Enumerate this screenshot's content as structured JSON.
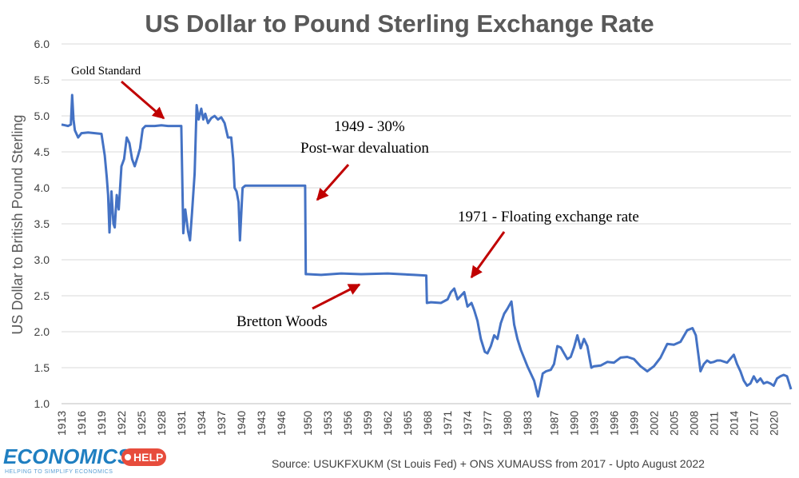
{
  "chart_data": {
    "type": "line",
    "title": "US Dollar to Pound Sterling Exchange Rate",
    "ylabel": "US Dollar to British Pound Sterling",
    "xlabel": "",
    "ylim": [
      1.0,
      6.0
    ],
    "xlim": [
      1913,
      2022.6
    ],
    "yticks": [
      "1.0",
      "1.5",
      "2.0",
      "2.5",
      "3.0",
      "3.5",
      "4.0",
      "4.5",
      "5.0",
      "5.5",
      "6.0"
    ],
    "xticks": [
      "1913",
      "1916",
      "1919",
      "1922",
      "1925",
      "1928",
      "1931",
      "1934",
      "1937",
      "1940",
      "1943",
      "1946",
      "1950",
      "1953",
      "1956",
      "1959",
      "1962",
      "1965",
      "1968",
      "1971",
      "1974",
      "1977",
      "1980",
      "1983",
      "1987",
      "1990",
      "1993",
      "1996",
      "1999",
      "2002",
      "2005",
      "2008",
      "2011",
      "2014",
      "2017",
      "2020"
    ],
    "grid": "horizontal",
    "series": [
      {
        "name": "",
        "color": "#4472c4",
        "x": [
          1913.0,
          1913.5,
          1914.0,
          1914.4,
          1914.6,
          1914.8,
          1915.0,
          1915.5,
          1916.0,
          1917.0,
          1918.0,
          1919.0,
          1919.5,
          1919.8,
          1920.0,
          1920.2,
          1920.5,
          1920.8,
          1921.0,
          1921.3,
          1921.6,
          1922.0,
          1922.4,
          1922.8,
          1923.2,
          1923.6,
          1924.0,
          1924.5,
          1924.8,
          1925.2,
          1925.6,
          1926.0,
          1927.0,
          1928.0,
          1929.0,
          1930.0,
          1931.0,
          1931.3,
          1931.6,
          1932.0,
          1932.3,
          1932.6,
          1933.0,
          1933.3,
          1933.6,
          1934.0,
          1934.3,
          1934.6,
          1935.0,
          1935.5,
          1936.0,
          1936.5,
          1937.0,
          1937.5,
          1938.0,
          1938.5,
          1938.8,
          1939.0,
          1939.3,
          1939.6,
          1939.8,
          1940.2,
          1940.6,
          1941.0,
          1945.0,
          1949.0,
          1949.6,
          1949.7,
          1950.0,
          1952.0,
          1955.0,
          1958.0,
          1962.0,
          1966.0,
          1967.8,
          1967.9,
          1968.5,
          1970.0,
          1971.0,
          1971.5,
          1972.0,
          1972.5,
          1973.0,
          1973.5,
          1974.0,
          1974.6,
          1975.0,
          1975.5,
          1976.0,
          1976.6,
          1977.0,
          1977.5,
          1978.0,
          1978.5,
          1979.0,
          1979.5,
          1980.0,
          1980.6,
          1981.0,
          1981.5,
          1982.0,
          1983.0,
          1984.0,
          1984.6,
          1985.0,
          1985.3,
          1985.8,
          1986.5,
          1987.0,
          1987.5,
          1988.0,
          1988.5,
          1989.0,
          1989.5,
          1990.0,
          1990.5,
          1991.0,
          1991.5,
          1992.0,
          1992.6,
          1993.0,
          1994.0,
          1995.0,
          1996.0,
          1997.0,
          1998.0,
          1999.0,
          2000.0,
          2001.0,
          2002.0,
          2003.0,
          2004.0,
          2005.0,
          2006.0,
          2007.0,
          2007.8,
          2008.3,
          2008.8,
          2009.0,
          2009.5,
          2010.0,
          2010.5,
          2011.0,
          2011.5,
          2012.0,
          2013.0,
          2014.0,
          2014.5,
          2015.0,
          2015.5,
          2016.0,
          2016.5,
          2017.0,
          2017.5,
          2018.0,
          2018.5,
          2019.0,
          2019.5,
          2020.0,
          2020.5,
          2021.0,
          2021.5,
          2022.0,
          2022.6
        ],
        "y": [
          4.88,
          4.87,
          4.86,
          4.88,
          5.29,
          4.95,
          4.8,
          4.7,
          4.76,
          4.77,
          4.76,
          4.75,
          4.45,
          4.15,
          3.9,
          3.38,
          3.95,
          3.5,
          3.45,
          3.9,
          3.7,
          4.3,
          4.4,
          4.7,
          4.62,
          4.4,
          4.3,
          4.45,
          4.55,
          4.82,
          4.86,
          4.86,
          4.86,
          4.87,
          4.86,
          4.86,
          4.86,
          3.37,
          3.7,
          3.4,
          3.27,
          3.65,
          4.2,
          5.15,
          4.95,
          5.1,
          4.95,
          5.03,
          4.9,
          4.97,
          5.0,
          4.95,
          4.98,
          4.9,
          4.7,
          4.7,
          4.4,
          4.0,
          3.95,
          3.8,
          3.27,
          4.0,
          4.03,
          4.03,
          4.03,
          4.03,
          4.03,
          2.8,
          2.8,
          2.79,
          2.81,
          2.8,
          2.81,
          2.79,
          2.78,
          2.4,
          2.41,
          2.4,
          2.45,
          2.55,
          2.6,
          2.45,
          2.5,
          2.55,
          2.35,
          2.4,
          2.3,
          2.15,
          1.9,
          1.72,
          1.7,
          1.8,
          1.95,
          1.9,
          2.12,
          2.25,
          2.32,
          2.42,
          2.1,
          1.9,
          1.75,
          1.52,
          1.32,
          1.1,
          1.28,
          1.42,
          1.45,
          1.47,
          1.55,
          1.8,
          1.78,
          1.7,
          1.62,
          1.65,
          1.78,
          1.95,
          1.77,
          1.9,
          1.8,
          1.5,
          1.52,
          1.53,
          1.58,
          1.57,
          1.64,
          1.65,
          1.62,
          1.52,
          1.45,
          1.52,
          1.64,
          1.83,
          1.82,
          1.86,
          2.02,
          2.05,
          1.95,
          1.6,
          1.45,
          1.55,
          1.6,
          1.57,
          1.58,
          1.6,
          1.6,
          1.57,
          1.68,
          1.55,
          1.45,
          1.32,
          1.25,
          1.28,
          1.38,
          1.3,
          1.35,
          1.28,
          1.3,
          1.28,
          1.25,
          1.35,
          1.38,
          1.4,
          1.38,
          1.2
        ]
      }
    ],
    "annotations": [
      {
        "text": "Gold Standard"
      },
      {
        "text": "1949 - 30%"
      },
      {
        "text": "Post-war devaluation"
      },
      {
        "text": "1971 - Floating exchange rate"
      },
      {
        "text": "Bretton Woods"
      }
    ],
    "source": "Source: USUKFXUKM (St Louis Fed) + ONS XUMAUSS from 2017 - Upto August 2022"
  },
  "logo": {
    "main": "ECONOMICS",
    "badge": "HELP",
    "tagline": "HELPING TO SIMPLIFY ECONOMICS"
  },
  "colors": {
    "line": "#4472c4",
    "arrow": "#c00000",
    "grid": "#d9d9d9",
    "logo_blue": "#1f7fc1",
    "logo_red": "#e74c3c"
  }
}
